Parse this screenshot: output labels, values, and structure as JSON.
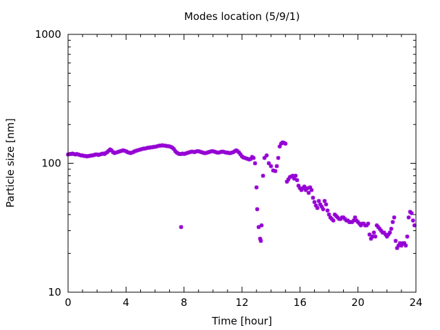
{
  "chart_data": {
    "type": "scatter",
    "title": "Modes location (5/9/1)",
    "xlabel": "Time [hour]",
    "ylabel": "Particle size [nm]",
    "xlim": [
      0,
      24
    ],
    "ylim": [
      10,
      1000
    ],
    "yscale": "log",
    "grid": false,
    "legend": "none",
    "marker_color": "#9400d3",
    "x_ticks": [
      0,
      4,
      8,
      12,
      16,
      20,
      24
    ],
    "x_tick_labels": [
      "0",
      "4",
      "8",
      "12",
      "16",
      "20",
      "24"
    ],
    "y_ticks": [
      10,
      100,
      1000
    ],
    "y_tick_labels": [
      "10",
      "100",
      "1000"
    ],
    "series": [
      {
        "points": [
          [
            0.0,
            117
          ],
          [
            0.1,
            118
          ],
          [
            0.2,
            118
          ],
          [
            0.3,
            119
          ],
          [
            0.4,
            118
          ],
          [
            0.5,
            117
          ],
          [
            0.6,
            118
          ],
          [
            0.7,
            117
          ],
          [
            0.8,
            116
          ],
          [
            0.9,
            115
          ],
          [
            1.0,
            115
          ],
          [
            1.1,
            114
          ],
          [
            1.2,
            114
          ],
          [
            1.3,
            113
          ],
          [
            1.4,
            114
          ],
          [
            1.5,
            114
          ],
          [
            1.6,
            115
          ],
          [
            1.7,
            115
          ],
          [
            1.8,
            116
          ],
          [
            1.9,
            117
          ],
          [
            2.0,
            117
          ],
          [
            2.1,
            116
          ],
          [
            2.2,
            117
          ],
          [
            2.3,
            118
          ],
          [
            2.4,
            119
          ],
          [
            2.5,
            118
          ],
          [
            2.6,
            120
          ],
          [
            2.7,
            122
          ],
          [
            2.8,
            125
          ],
          [
            2.9,
            128
          ],
          [
            3.0,
            126
          ],
          [
            3.1,
            122
          ],
          [
            3.2,
            120
          ],
          [
            3.3,
            121
          ],
          [
            3.4,
            122
          ],
          [
            3.5,
            123
          ],
          [
            3.6,
            124
          ],
          [
            3.7,
            125
          ],
          [
            3.8,
            126
          ],
          [
            3.9,
            125
          ],
          [
            4.0,
            124
          ],
          [
            4.1,
            122
          ],
          [
            4.2,
            121
          ],
          [
            4.3,
            120
          ],
          [
            4.4,
            121
          ],
          [
            4.5,
            122
          ],
          [
            4.6,
            124
          ],
          [
            4.7,
            125
          ],
          [
            4.8,
            126
          ],
          [
            4.9,
            127
          ],
          [
            5.0,
            128
          ],
          [
            5.1,
            129
          ],
          [
            5.2,
            130
          ],
          [
            5.3,
            130
          ],
          [
            5.4,
            131
          ],
          [
            5.5,
            132
          ],
          [
            5.6,
            132
          ],
          [
            5.7,
            133
          ],
          [
            5.8,
            133
          ],
          [
            5.9,
            134
          ],
          [
            6.0,
            134
          ],
          [
            6.1,
            135
          ],
          [
            6.2,
            136
          ],
          [
            6.3,
            137
          ],
          [
            6.4,
            137
          ],
          [
            6.5,
            138
          ],
          [
            6.6,
            137
          ],
          [
            6.7,
            137
          ],
          [
            6.8,
            136
          ],
          [
            6.9,
            136
          ],
          [
            7.0,
            135
          ],
          [
            7.1,
            134
          ],
          [
            7.2,
            132
          ],
          [
            7.3,
            129
          ],
          [
            7.4,
            124
          ],
          [
            7.5,
            121
          ],
          [
            7.6,
            119
          ],
          [
            7.7,
            118
          ],
          [
            7.8,
            118
          ],
          [
            7.9,
            119
          ],
          [
            8.0,
            118
          ],
          [
            8.1,
            119
          ],
          [
            8.2,
            120
          ],
          [
            8.3,
            121
          ],
          [
            8.4,
            122
          ],
          [
            8.5,
            123
          ],
          [
            8.6,
            123
          ],
          [
            8.7,
            122
          ],
          [
            8.8,
            123
          ],
          [
            8.9,
            124
          ],
          [
            9.0,
            124
          ],
          [
            9.1,
            123
          ],
          [
            9.2,
            122
          ],
          [
            9.3,
            121
          ],
          [
            9.4,
            120
          ],
          [
            9.5,
            120
          ],
          [
            9.6,
            121
          ],
          [
            9.7,
            122
          ],
          [
            9.8,
            123
          ],
          [
            9.9,
            124
          ],
          [
            10.0,
            124
          ],
          [
            10.1,
            123
          ],
          [
            10.2,
            122
          ],
          [
            10.3,
            121
          ],
          [
            10.4,
            121
          ],
          [
            10.5,
            122
          ],
          [
            10.6,
            123
          ],
          [
            10.7,
            123
          ],
          [
            10.8,
            122
          ],
          [
            10.9,
            121
          ],
          [
            11.0,
            121
          ],
          [
            11.1,
            120
          ],
          [
            11.2,
            120
          ],
          [
            11.3,
            121
          ],
          [
            11.4,
            122
          ],
          [
            11.5,
            124
          ],
          [
            11.6,
            126
          ],
          [
            11.7,
            124
          ],
          [
            11.8,
            121
          ],
          [
            11.9,
            117
          ],
          [
            12.0,
            113
          ],
          [
            12.1,
            111
          ],
          [
            12.2,
            110
          ],
          [
            12.3,
            109
          ],
          [
            12.4,
            108
          ],
          [
            12.5,
            107
          ],
          [
            12.6,
            108
          ],
          [
            12.7,
            112
          ],
          [
            12.8,
            110
          ],
          [
            7.8,
            32
          ],
          [
            12.9,
            100
          ],
          [
            13.0,
            65
          ],
          [
            13.05,
            44
          ],
          [
            13.15,
            32
          ],
          [
            13.25,
            26
          ],
          [
            13.3,
            25
          ],
          [
            13.35,
            33
          ],
          [
            13.45,
            80
          ],
          [
            13.55,
            110
          ],
          [
            13.7,
            115
          ],
          [
            13.85,
            100
          ],
          [
            14.0,
            95
          ],
          [
            14.15,
            88
          ],
          [
            14.3,
            87
          ],
          [
            14.4,
            95
          ],
          [
            14.5,
            110
          ],
          [
            14.6,
            135
          ],
          [
            14.7,
            142
          ],
          [
            14.8,
            145
          ],
          [
            14.9,
            144
          ],
          [
            15.0,
            142
          ],
          [
            15.1,
            72
          ],
          [
            15.2,
            75
          ],
          [
            15.3,
            78
          ],
          [
            15.4,
            79
          ],
          [
            15.5,
            80
          ],
          [
            15.6,
            76
          ],
          [
            15.7,
            80
          ],
          [
            15.8,
            74
          ],
          [
            15.9,
            67
          ],
          [
            16.0,
            64
          ],
          [
            16.1,
            62
          ],
          [
            16.2,
            64
          ],
          [
            16.3,
            66
          ],
          [
            16.4,
            62
          ],
          [
            16.5,
            64
          ],
          [
            16.6,
            59
          ],
          [
            16.7,
            65
          ],
          [
            16.8,
            62
          ],
          [
            16.9,
            54
          ],
          [
            17.0,
            50
          ],
          [
            17.1,
            47
          ],
          [
            17.2,
            45
          ],
          [
            17.3,
            51
          ],
          [
            17.4,
            48
          ],
          [
            17.5,
            46
          ],
          [
            17.6,
            44
          ],
          [
            17.7,
            51
          ],
          [
            17.8,
            48
          ],
          [
            17.9,
            43
          ],
          [
            18.0,
            40
          ],
          [
            18.1,
            38
          ],
          [
            18.2,
            37
          ],
          [
            18.3,
            36
          ],
          [
            18.4,
            40
          ],
          [
            18.5,
            39
          ],
          [
            18.6,
            38
          ],
          [
            18.7,
            37
          ],
          [
            18.8,
            37
          ],
          [
            18.9,
            38
          ],
          [
            19.0,
            38
          ],
          [
            19.1,
            37
          ],
          [
            19.2,
            36
          ],
          [
            19.3,
            36
          ],
          [
            19.4,
            35
          ],
          [
            19.5,
            35
          ],
          [
            19.6,
            35
          ],
          [
            19.7,
            36
          ],
          [
            19.8,
            38
          ],
          [
            19.9,
            36
          ],
          [
            20.0,
            35
          ],
          [
            20.1,
            34
          ],
          [
            20.2,
            33
          ],
          [
            20.3,
            34
          ],
          [
            20.4,
            34
          ],
          [
            20.5,
            33
          ],
          [
            20.6,
            33
          ],
          [
            20.7,
            34
          ],
          [
            20.8,
            28
          ],
          [
            20.9,
            26
          ],
          [
            21.0,
            27
          ],
          [
            21.1,
            29
          ],
          [
            21.2,
            27
          ],
          [
            21.3,
            33
          ],
          [
            21.4,
            32
          ],
          [
            21.5,
            31
          ],
          [
            21.6,
            30
          ],
          [
            21.7,
            29
          ],
          [
            21.8,
            29
          ],
          [
            21.9,
            28
          ],
          [
            22.0,
            27
          ],
          [
            22.1,
            28
          ],
          [
            22.2,
            29
          ],
          [
            22.3,
            31
          ],
          [
            22.4,
            35
          ],
          [
            22.5,
            38
          ],
          [
            22.6,
            25
          ],
          [
            22.7,
            22
          ],
          [
            22.8,
            23
          ],
          [
            22.9,
            24
          ],
          [
            23.0,
            23
          ],
          [
            23.1,
            24
          ],
          [
            23.2,
            24
          ],
          [
            23.3,
            23
          ],
          [
            23.4,
            27
          ],
          [
            23.5,
            38
          ],
          [
            23.6,
            42
          ],
          [
            23.7,
            41
          ],
          [
            23.8,
            36
          ],
          [
            23.9,
            33
          ]
        ]
      }
    ]
  }
}
